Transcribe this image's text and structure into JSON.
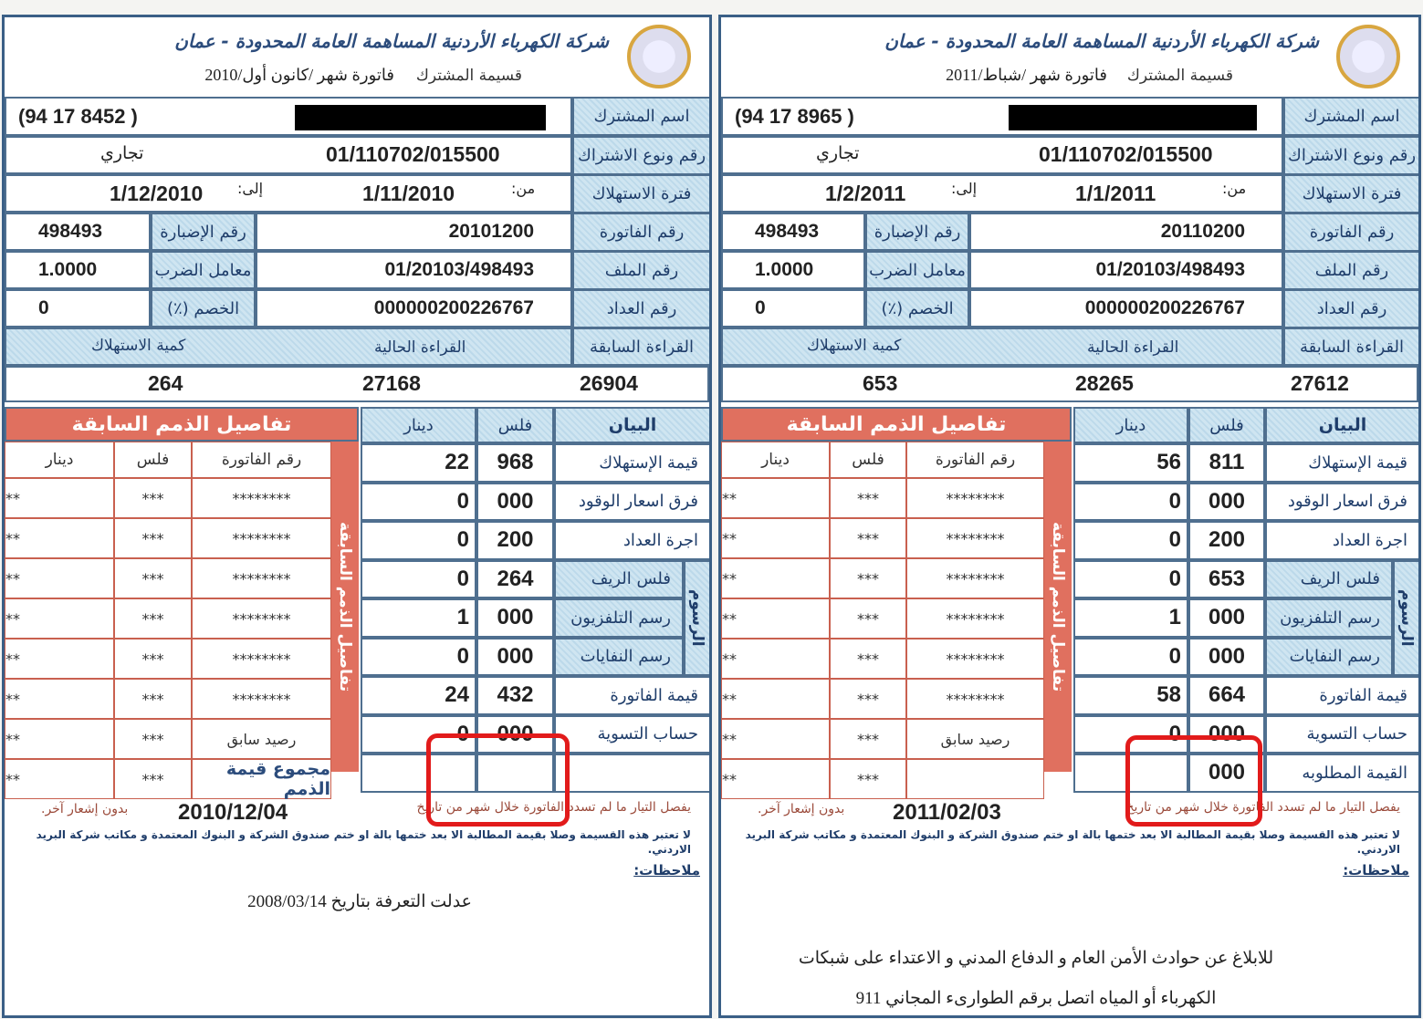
{
  "common": {
    "company": "شركة الكهرباء الأردنية المساهمة العامة المحدودة - عمان",
    "receipt": "قسيمة المشترك",
    "labels": {
      "name": "اسم المشترك",
      "subscription": "رقم ونوع الاشتراك",
      "period": "فترة الاستهلاك",
      "invoice": "رقم الفاتورة",
      "file": "رقم الملف",
      "meter": "رقم العداد",
      "prev_reading": "القراءة السابقة",
      "cur_reading": "القراءة الحالية",
      "consumption": "كمية الاستهلاك",
      "from": "من:",
      "to": "إلى:",
      "folder": "رقم الإضبارة",
      "multiplier": "معامل الضرب",
      "discount": "الخصم (٪)"
    },
    "charges_header": {
      "item": "البيان",
      "fils": "فلس",
      "dinar": "دينار"
    },
    "fees_group": "الرسوم",
    "dues": {
      "title": "تفاصيل الذمم السابقة",
      "side": "تفاصيل الذمم السابقة",
      "cols": {
        "invoice": "رقم الفاتورة",
        "fils": "فلس",
        "dinar": "دينار"
      },
      "invoice_mask": "********",
      "fils_mask": "***",
      "dinar_mask": "**",
      "prev_balance": "رصيد سابق",
      "total": "مجموع قيمة الذمم"
    },
    "notes": {
      "disconnect": "يفصل التيار ما لم تسدد الفاتورة خلال شهر من تاريخ",
      "no_notice": "بدون إشعار آخر.",
      "receipt_note": "لا تعتبر هذه القسيمة وصلا بقيمة المطالبة الا بعد ختمها بالة او ختم صندوق الشركة و البنوك المعتمدة و مكاتب شركة البريد الاردني.",
      "remarks": "ملاحظات:"
    }
  },
  "bills": [
    {
      "month": "فاتورة شهر /كانون أول/2010",
      "phone": "(94 17 8452 )",
      "subscription_no": "01/110702/015500",
      "subscription_type": "تجاري",
      "from": "1/11/2010",
      "to": "1/12/2010",
      "invoice_no": "20101200",
      "folder_no": "498493",
      "file_no": "01/20103/498493",
      "multiplier": "1.0000",
      "meter_no": "000000200226767",
      "discount": "0",
      "prev_reading": "26904",
      "cur_reading": "27168",
      "consumption": "264",
      "charges": [
        {
          "label": "قيمة الإستهلاك",
          "dinar": "22",
          "fils": "968"
        },
        {
          "label": "فرق اسعار الوقود",
          "dinar": "0",
          "fils": "000"
        },
        {
          "label": "اجرة العداد",
          "dinar": "0",
          "fils": "200"
        },
        {
          "label": "فلس الريف",
          "dinar": "0",
          "fils": "264"
        },
        {
          "label": "رسم التلفزيون",
          "dinar": "1",
          "fils": "000"
        },
        {
          "label": "رسم النفايات",
          "dinar": "0",
          "fils": "000"
        },
        {
          "label": "قيمة الفاتورة",
          "dinar": "24",
          "fils": "432"
        },
        {
          "label": "حساب التسوية",
          "dinar": "0",
          "fils": "000"
        },
        {
          "label": "",
          "dinar": "",
          "fils": ""
        }
      ],
      "due_date": "2010/12/04",
      "last_dues_label": "مجموع قيمة الذمم",
      "remark": "عدلت التعرفة بتاريخ 2008/03/14"
    },
    {
      "month": "فاتورة شهر /شباط/2011",
      "phone": "(94 17 8965 )",
      "subscription_no": "01/110702/015500",
      "subscription_type": "تجاري",
      "from": "1/1/2011",
      "to": "1/2/2011",
      "invoice_no": "20110200",
      "folder_no": "498493",
      "file_no": "01/20103/498493",
      "multiplier": "1.0000",
      "meter_no": "000000200226767",
      "discount": "0",
      "prev_reading": "27612",
      "cur_reading": "28265",
      "consumption": "653",
      "charges": [
        {
          "label": "قيمة الإستهلاك",
          "dinar": "56",
          "fils": "811"
        },
        {
          "label": "فرق اسعار الوقود",
          "dinar": "0",
          "fils": "000"
        },
        {
          "label": "اجرة العداد",
          "dinar": "0",
          "fils": "200"
        },
        {
          "label": "فلس الريف",
          "dinar": "0",
          "fils": "653"
        },
        {
          "label": "رسم التلفزيون",
          "dinar": "1",
          "fils": "000"
        },
        {
          "label": "رسم النفايات",
          "dinar": "0",
          "fils": "000"
        },
        {
          "label": "قيمة الفاتورة",
          "dinar": "58",
          "fils": "664"
        },
        {
          "label": "حساب التسوية",
          "dinar": "0",
          "fils": "000"
        },
        {
          "label": "القيمة المطلوبه",
          "dinar": "",
          "fils": "000"
        }
      ],
      "due_date": "2011/02/03",
      "last_dues_label": "",
      "remark": "للابلاغ عن حوادث الأمن العام و الدفاع المدني و الاعتداء على شبكات الكهرباء أو المياه اتصل برقم الطوارىء المجاني 911"
    }
  ],
  "colors": {
    "border": "#4f6f8f",
    "label_bg": "#cfe5f1",
    "dues_red": "#e0705f",
    "annotation": "#e21b1b"
  }
}
